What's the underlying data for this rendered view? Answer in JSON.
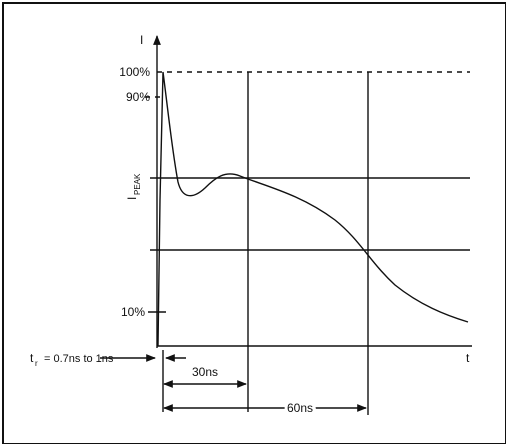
{
  "axes": {
    "y_label": "I",
    "x_label": "t"
  },
  "levels": {
    "top": "100%",
    "ninety": "90%",
    "ten": "10%"
  },
  "peak_label": {
    "main": "I",
    "sub": "PEAK"
  },
  "rise_time": {
    "main": "t",
    "sub": "r",
    "rest": "= 0.7ns to 1ns"
  },
  "intervals": {
    "first": "30ns",
    "second": "60ns"
  }
}
